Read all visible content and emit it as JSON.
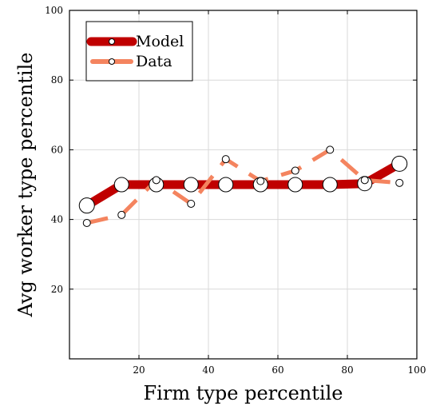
{
  "chart_data": {
    "type": "line",
    "xlabel": "Firm type percentile",
    "ylabel": "Avg worker type percentile",
    "xlim": [
      0,
      100
    ],
    "ylim": [
      0,
      100
    ],
    "xticks": [
      "20",
      "40",
      "60",
      "80",
      "100"
    ],
    "yticks": [
      "20",
      "40",
      "60",
      "80",
      "100"
    ],
    "grid": true,
    "legend_position": "top-left",
    "series": [
      {
        "name": "Model",
        "color": "#c00000",
        "style": "thick-line-with-markers",
        "x": [
          5,
          15,
          25,
          35,
          45,
          55,
          65,
          75,
          85,
          95
        ],
        "y": [
          44,
          50,
          50,
          50,
          50,
          50,
          50,
          50,
          50.3,
          56
        ]
      },
      {
        "name": "Data",
        "color": "#f4845f",
        "style": "dashed-line-with-markers",
        "x": [
          5,
          15,
          25,
          35,
          45,
          55,
          65,
          75,
          85,
          95
        ],
        "y": [
          39,
          41.3,
          51.3,
          44.5,
          57.3,
          51,
          54,
          60,
          51.3,
          50.5
        ]
      }
    ]
  }
}
